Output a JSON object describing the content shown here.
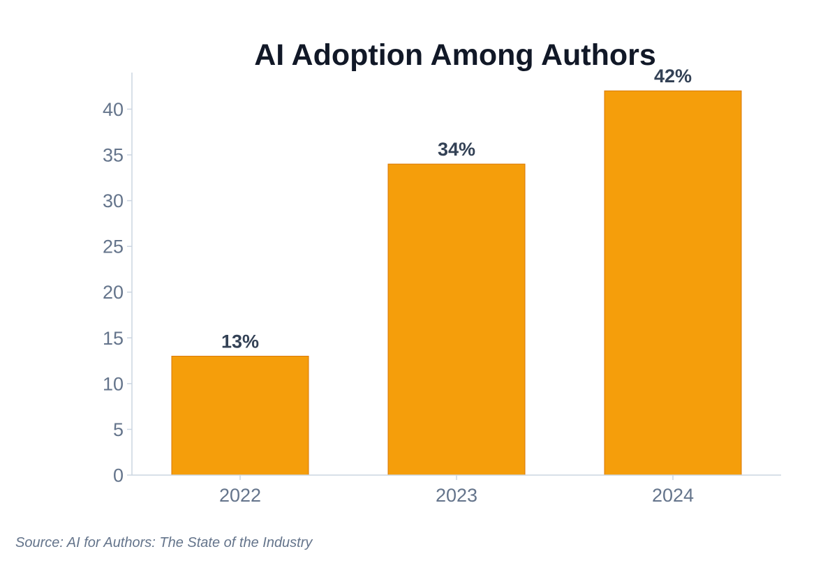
{
  "chart_data": {
    "type": "bar",
    "title": "AI Adoption Among Authors",
    "xlabel": "",
    "ylabel": "",
    "categories": [
      "2022",
      "2023",
      "2024"
    ],
    "values": [
      13,
      34,
      42
    ],
    "value_labels": [
      "13%",
      "34%",
      "42%"
    ],
    "y_ticks": [
      0,
      5,
      10,
      15,
      20,
      25,
      30,
      35,
      40
    ],
    "ylim": [
      0,
      44
    ],
    "grid": false,
    "legend": "none",
    "bar_color": "#f59e0b",
    "bar_edge_color": "#d97706",
    "axis_color": "#cbd5e1"
  },
  "source": "Source: AI for Authors: The State of the Industry"
}
